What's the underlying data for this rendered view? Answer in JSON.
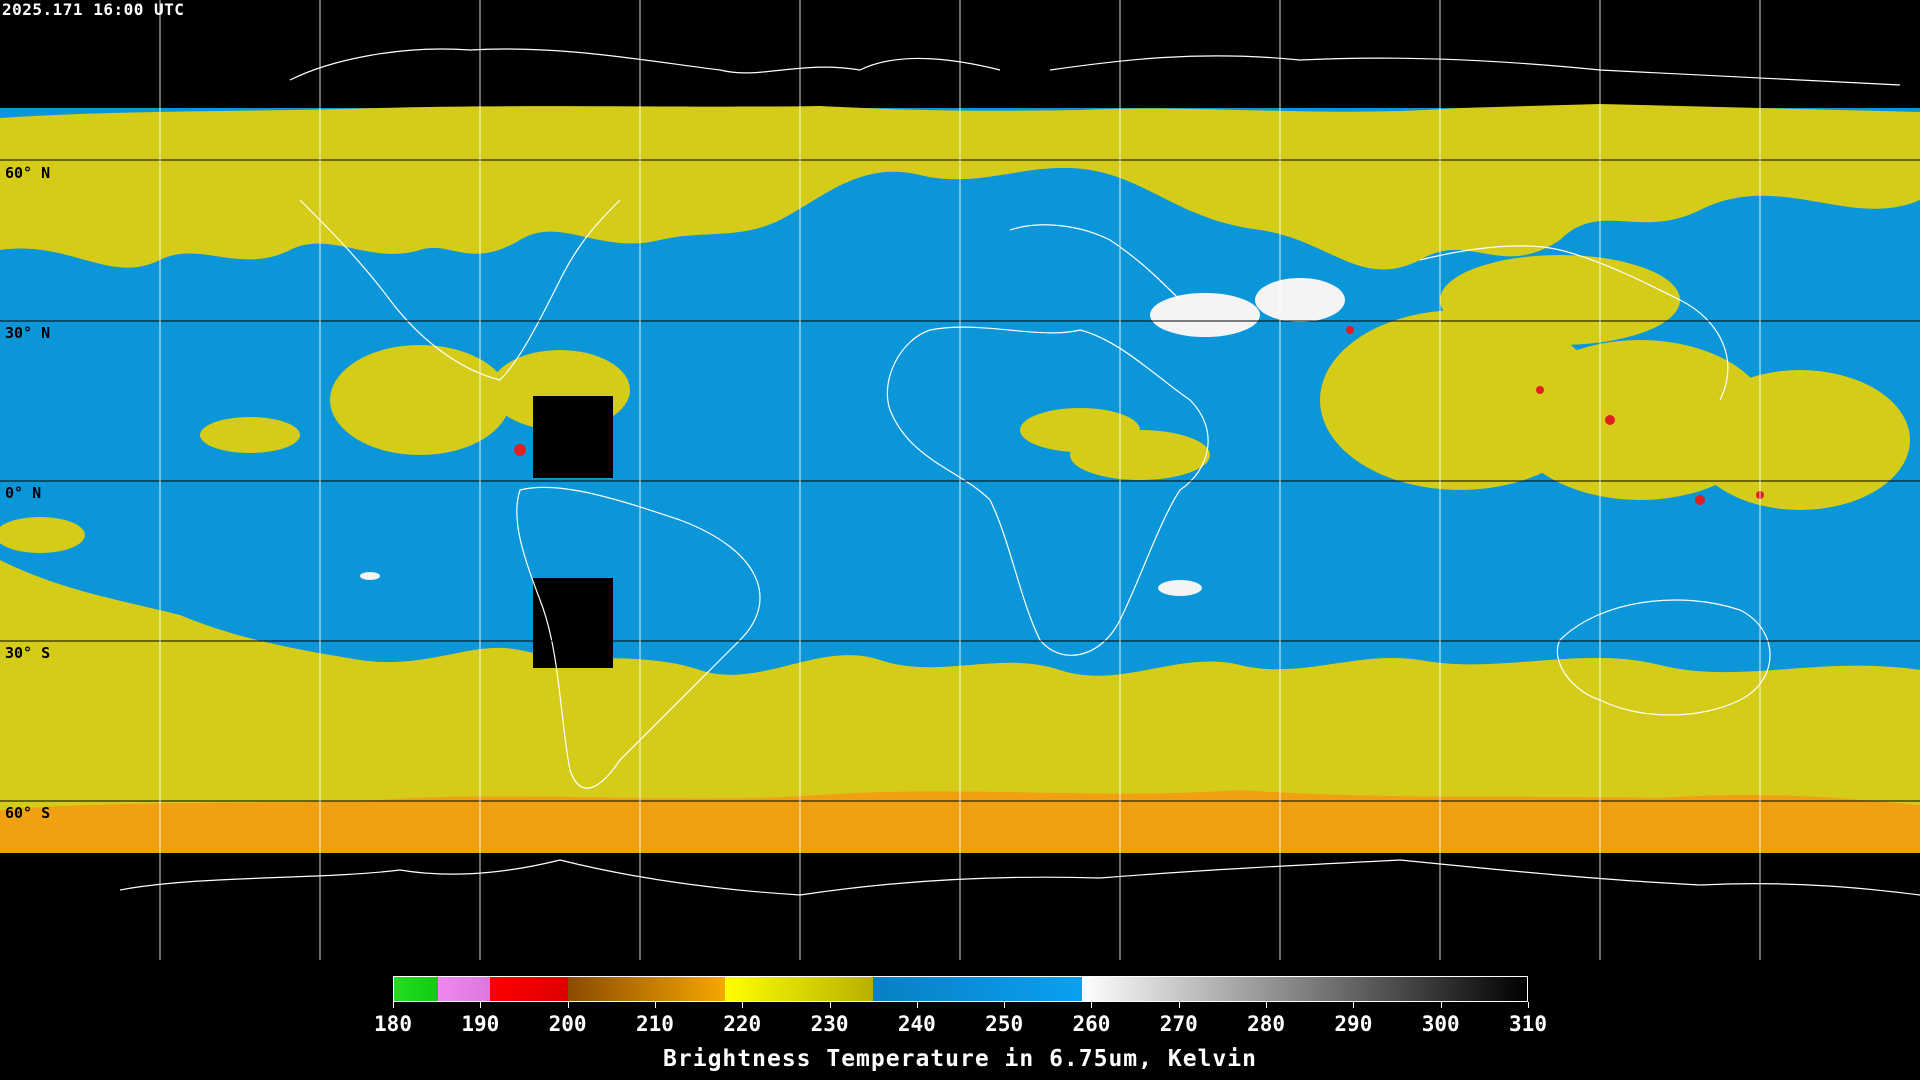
{
  "header": {
    "timestamp": "2025.171 16:00 UTC"
  },
  "map": {
    "latitude_labels": [
      "60° N",
      "30° N",
      "0° N",
      "30° S",
      "60° S"
    ],
    "colors": {
      "background": "#000000",
      "warm_moist": "#0a96d8",
      "cold_yellow": "#d4cc18",
      "cold_orange": "#f0a010",
      "very_cold_red": "#e02020",
      "dry_white": "#f4f4f4",
      "grid": "#000000",
      "coast": "#ffffff"
    }
  },
  "legend": {
    "title": "Brightness Temperature in 6.75um, Kelvin",
    "ticks": [
      "180",
      "190",
      "200",
      "210",
      "220",
      "230",
      "240",
      "250",
      "260",
      "270",
      "280",
      "290",
      "300",
      "310"
    ],
    "range": [
      180,
      310
    ],
    "segments": [
      {
        "from": 180,
        "to": 185,
        "colors": [
          "#22dd22",
          "#11cc11"
        ]
      },
      {
        "from": 185,
        "to": 191,
        "colors": [
          "#ee88ee",
          "#dd77dd"
        ]
      },
      {
        "from": 191,
        "to": 200,
        "colors": [
          "#ff0000",
          "#dd0000"
        ]
      },
      {
        "from": 200,
        "to": 218,
        "colors": [
          "#8b4a00",
          "#f5a800"
        ]
      },
      {
        "from": 218,
        "to": 235,
        "colors": [
          "#ffff00",
          "#b8b000"
        ]
      },
      {
        "from": 235,
        "to": 259,
        "colors": [
          "#0880c4",
          "#0aa0f0"
        ]
      },
      {
        "from": 259,
        "to": 310,
        "colors": [
          "#ffffff",
          "#000000"
        ]
      }
    ]
  }
}
